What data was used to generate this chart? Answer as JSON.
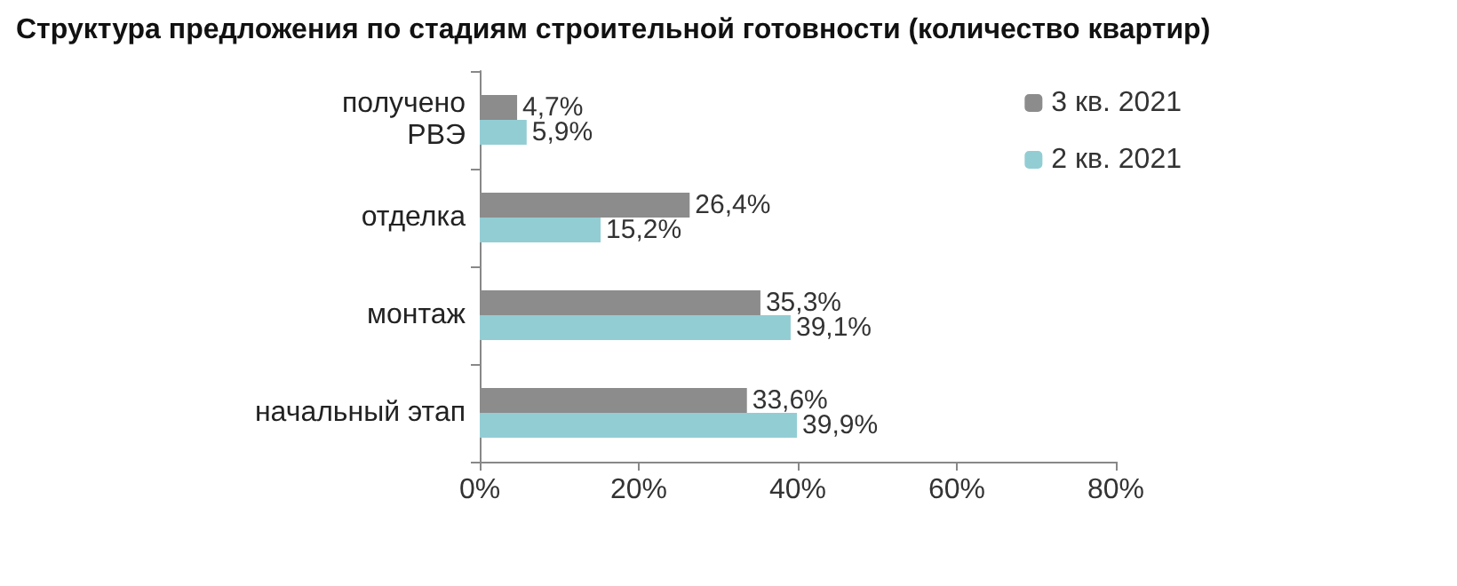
{
  "chart_data": {
    "type": "bar",
    "orientation": "horizontal",
    "title": "Структура предложения по стадиям строительной готовности (количество квартир)",
    "categories": [
      "получено\nРВЭ",
      "отделка",
      "монтаж",
      "начальный этап"
    ],
    "series": [
      {
        "name": "3 кв. 2021",
        "color": "#8c8c8c",
        "values": [
          4.7,
          26.4,
          35.3,
          33.6
        ],
        "value_labels": [
          "4,7%",
          "26,4%",
          "35,3%",
          "33,6%"
        ]
      },
      {
        "name": "2 кв. 2021",
        "color": "#93cdd4",
        "values": [
          5.9,
          15.2,
          39.1,
          39.9
        ],
        "value_labels": [
          "5,9%",
          "15,2%",
          "39,1%",
          "39,9%"
        ]
      }
    ],
    "xlim": [
      0,
      80
    ],
    "xticks": [
      {
        "value": 0,
        "label": "0%"
      },
      {
        "value": 20,
        "label": "20%"
      },
      {
        "value": 40,
        "label": "40%"
      },
      {
        "value": 60,
        "label": "60%"
      },
      {
        "value": 80,
        "label": "80%"
      }
    ],
    "grid": false,
    "legend": "top right"
  }
}
